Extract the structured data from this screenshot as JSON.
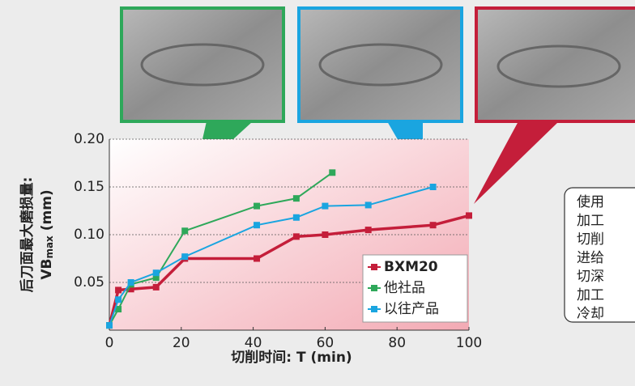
{
  "chart_data": {
    "type": "line",
    "xlabel": "切削时间: T (min)",
    "ylabel_lines": [
      "后刀面最大磨损量:",
      "VB",
      "max",
      " (mm)"
    ],
    "xlim": [
      0,
      100
    ],
    "xticks": [
      0,
      20,
      40,
      60,
      80,
      100
    ],
    "ylim": [
      0,
      0.2
    ],
    "yticks": [
      {
        "value": 0.05,
        "label": "0.05"
      },
      {
        "value": 0.1,
        "label": "0.10"
      },
      0.15,
      {
        "value": 0.2,
        "label": "0.20"
      }
    ],
    "grid": true,
    "legend": "lower right",
    "series": [
      {
        "name": "BXM20",
        "color": "#c41e3a",
        "x": [
          0,
          2.5,
          6,
          13,
          21,
          41,
          52,
          60,
          72,
          90,
          100
        ],
        "values": [
          0.005,
          0.042,
          0.043,
          0.045,
          0.075,
          0.075,
          0.098,
          0.1,
          0.105,
          0.11,
          0.12
        ]
      },
      {
        "name": "他社品",
        "color": "#2ea85a",
        "x": [
          0,
          2.5,
          6,
          13,
          21,
          41,
          52,
          62
        ],
        "values": [
          0.005,
          0.022,
          0.048,
          0.055,
          0.104,
          0.13,
          0.138,
          0.165
        ]
      },
      {
        "name": "以往产品",
        "color": "#1aa5e0",
        "x": [
          0,
          2.5,
          6,
          13,
          21,
          41,
          52,
          60,
          72,
          90
        ],
        "values": [
          0.005,
          0.032,
          0.05,
          0.06,
          0.077,
          0.11,
          0.118,
          0.13,
          0.131,
          0.15
        ]
      }
    ]
  },
  "side_note": [
    "使用",
    "加工",
    "切削",
    "进给",
    "切深",
    "加工",
    "冷却"
  ]
}
